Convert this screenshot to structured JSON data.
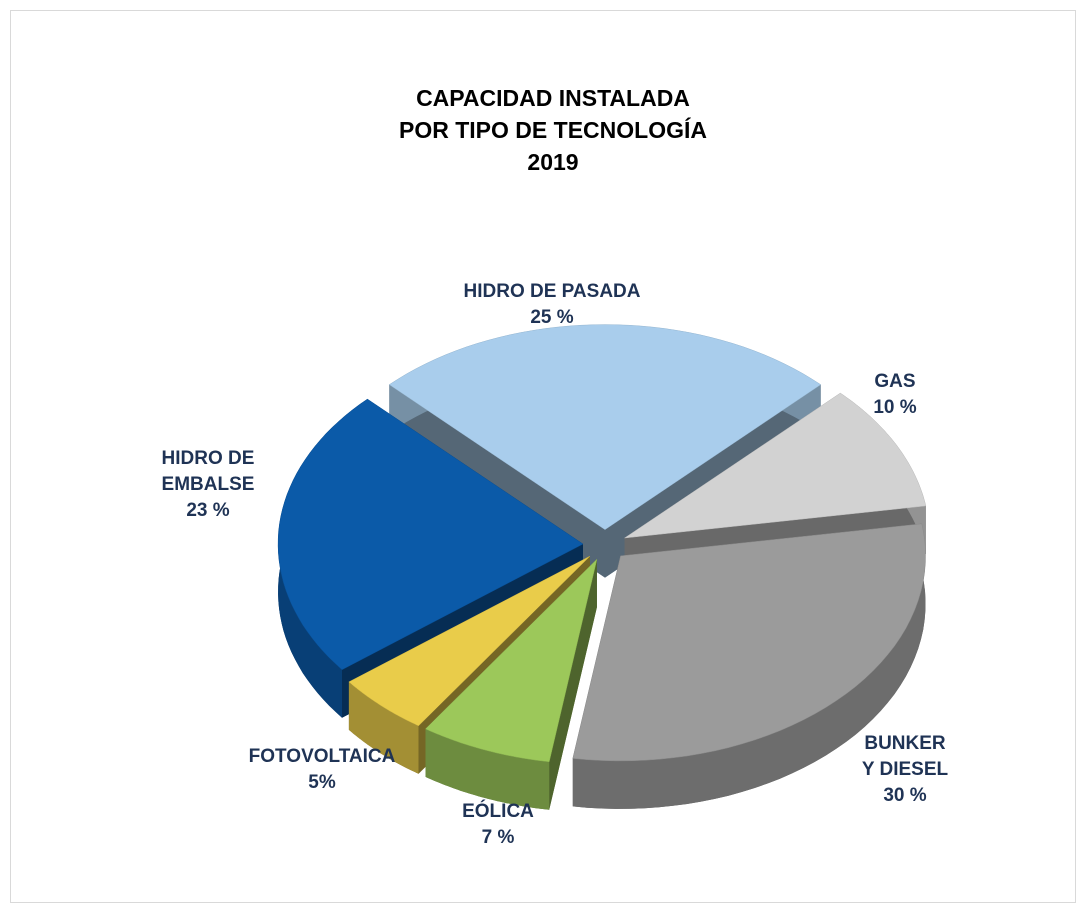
{
  "chart_data": {
    "type": "pie3d",
    "title": "CAPACIDAD INSTALADA\nPOR  TIPO DE TECNOLOGÍA\n2019",
    "categories": [
      "HIDRO DE PASADA",
      "GAS",
      "BUNKER\nY DIESEL",
      "EÓLICA",
      "FOTOVOLTAICA",
      "HIDRO DE\nEMBALSE"
    ],
    "values": [
      25,
      10,
      30,
      7,
      5,
      23
    ],
    "value_labels": [
      "25 %",
      "10 %",
      "30 %",
      "7 %",
      "5%",
      "23 %"
    ],
    "colors": [
      "#a9cdec",
      "#d2d2d2",
      "#9b9b9b",
      "#9cc85a",
      "#e9cc4a",
      "#0b5aa8"
    ]
  }
}
